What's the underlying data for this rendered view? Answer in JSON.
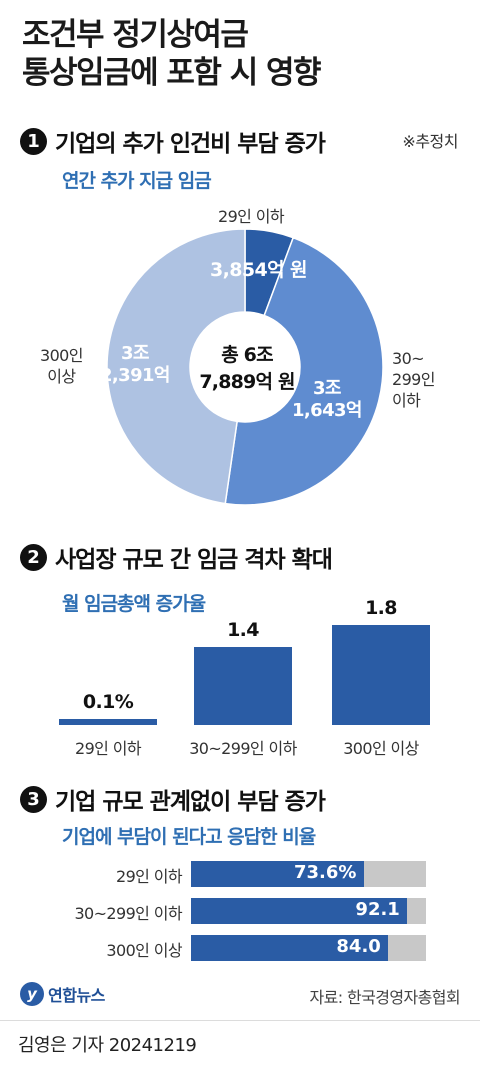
{
  "title_line1": "조건부 정기상여금",
  "title_line2": "통상임금에 포함 시 영향",
  "note": "※추정치",
  "section1": {
    "num": "1",
    "title": "기업의 추가 인건비 부담 증가",
    "subtitle": "연간 추가 지급 임금",
    "center_line1": "총 6조",
    "center_line2": "7,889억 원",
    "labels": {
      "small": "29인 이하",
      "mid_1": "30~",
      "mid_2": "299인",
      "mid_3": "이하",
      "large_1": "300인",
      "large_2": "이상"
    },
    "slice_values": {
      "small": "3,854억 원",
      "mid_1": "3조",
      "mid_2": "1,643억",
      "large_1": "3조",
      "large_2": "2,391억"
    }
  },
  "section2": {
    "num": "2",
    "title": "사업장 규모 간 임금 격차 확대",
    "subtitle": "월 임금총액 증가율"
  },
  "section3": {
    "num": "3",
    "title": "기업 규모 관계없이 부담 증가",
    "subtitle": "기업에 부담이 된다고 응답한 비율"
  },
  "chart_data": [
    {
      "type": "pie",
      "title": "연간 추가 지급 임금",
      "categories": [
        "29인 이하",
        "30~299인 이하",
        "300인 이상"
      ],
      "values": [
        3854,
        31643,
        32391
      ],
      "unit": "억 원",
      "total": 67889,
      "colors": [
        "#2a5ca5",
        "#5f8cd0",
        "#aec2e2"
      ]
    },
    {
      "type": "bar",
      "title": "월 임금총액 증가율",
      "categories": [
        "29인 이하",
        "30~299인 이하",
        "300인 이상"
      ],
      "values": [
        0.1,
        1.4,
        1.8
      ],
      "labels": [
        "0.1%",
        "1.4",
        "1.8"
      ],
      "unit": "%"
    },
    {
      "type": "bar",
      "orientation": "horizontal",
      "title": "기업에 부담이 된다고 응답한 비율",
      "categories": [
        "29인 이하",
        "30~299인 이하",
        "300인 이상"
      ],
      "values": [
        73.6,
        92.1,
        84.0
      ],
      "labels": [
        "73.6%",
        "92.1",
        "84.0"
      ],
      "xlim": [
        0,
        100
      ],
      "unit": "%"
    }
  ],
  "logo_text": "연합뉴스",
  "logo_mark": "y",
  "source": "자료: 한국경영자총협회",
  "footer": "김영은 기자  20241219"
}
